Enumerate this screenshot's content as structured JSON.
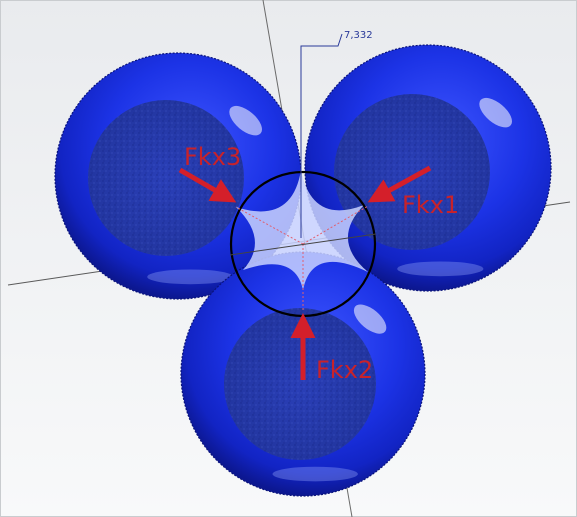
{
  "dimension": {
    "value": "7,332"
  },
  "forces": [
    {
      "id": "fkx1",
      "label": "Fkx1"
    },
    {
      "id": "fkx2",
      "label": "Fkx2"
    },
    {
      "id": "fkx3",
      "label": "Fkx3"
    }
  ],
  "colors": {
    "ball": "#1a2fe0",
    "ball_dark": "#0a16a0",
    "ball_light": "#6f86ff",
    "arrow": "#d41f2a",
    "force_text": "#c8222a",
    "dimension": "#2a3a9a",
    "ring": "#000000",
    "axis": "#5a5a5a",
    "background_top": "#ebedef",
    "background_bottom": "#f7f8f9",
    "frame": "#c9cccf"
  }
}
